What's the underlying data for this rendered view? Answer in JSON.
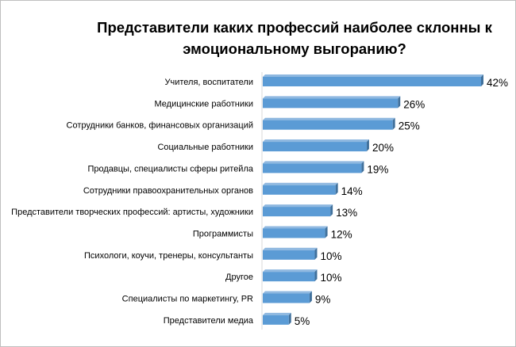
{
  "chart_data": {
    "type": "bar",
    "orientation": "horizontal",
    "style": "3d",
    "title_lines": [
      "Представители каких профессий наиболее склонны к",
      "эмоциональному  выгоранию?"
    ],
    "categories": [
      "Учителя, воспитатели",
      "Медицинские работники",
      "Сотрудники банков, финансовых организаций",
      "Социальные работники",
      "Продавцы, специалисты сферы ритейла",
      "Сотрудники правоохранительных органов",
      "Представители творческих профессий: артисты, художники",
      "Программисты",
      "Психологи,  коучи, тренеры, консультанты",
      "Другое",
      "Специалисты по маркетингу, PR",
      "Представители медиа"
    ],
    "values": [
      42,
      26,
      25,
      20,
      19,
      14,
      13,
      12,
      10,
      10,
      9,
      5
    ],
    "value_labels": [
      "42%",
      "26%",
      "25%",
      "20%",
      "19%",
      "14%",
      "13%",
      "12%",
      "10%",
      "10%",
      "9%",
      "5%"
    ],
    "xlim": [
      0,
      42
    ],
    "grid": false,
    "legend": "none",
    "colors": {
      "bar": "#5b9bd5",
      "bar_top": "#8fb8e0",
      "bar_side": "#41719c"
    }
  }
}
